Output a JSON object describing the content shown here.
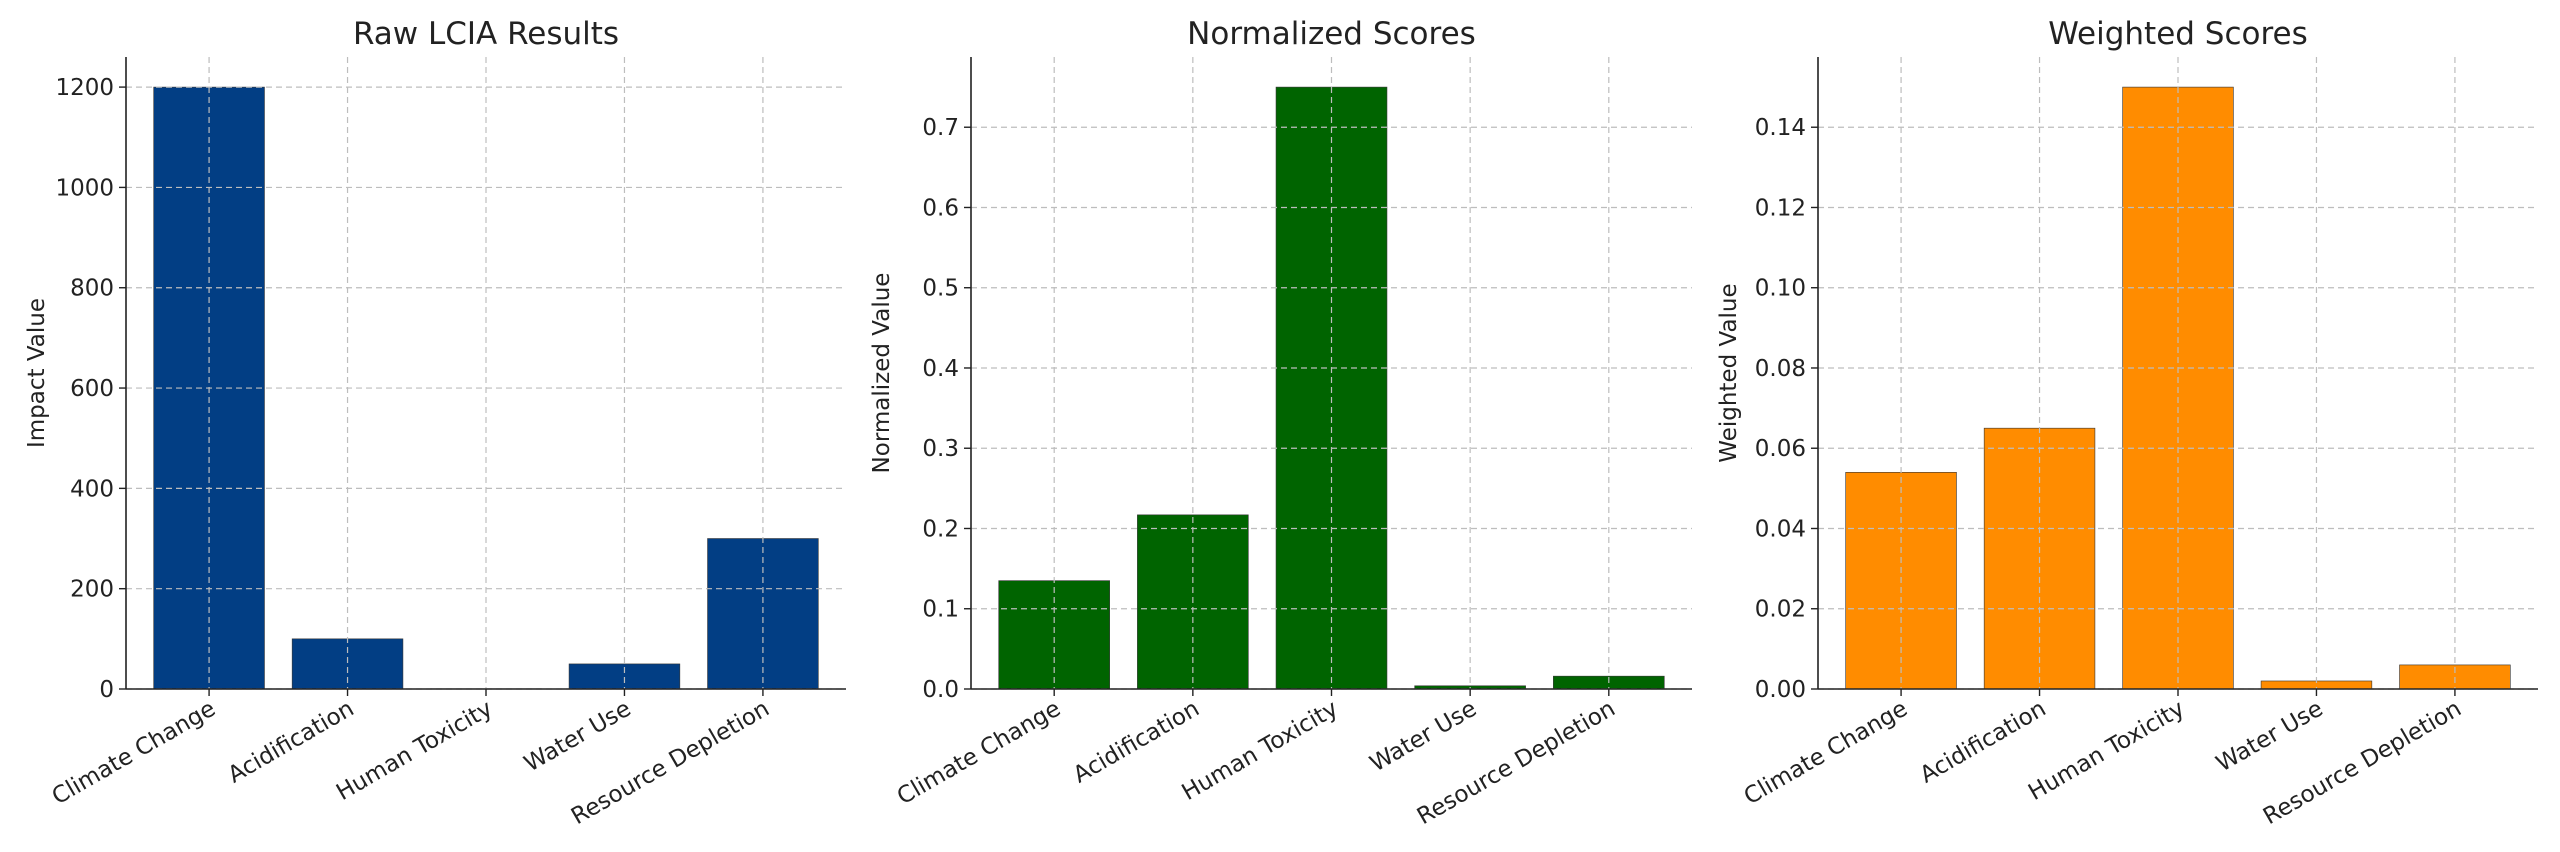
{
  "chart_data": [
    {
      "type": "bar",
      "title": "Raw LCIA Results",
      "xlabel": "",
      "ylabel": "Impact Value",
      "categories": [
        "Climate Change",
        "Acidification",
        "Human Toxicity",
        "Water Use",
        "Resource Depletion"
      ],
      "values": [
        1200,
        100,
        0.5,
        50,
        300
      ],
      "ylim": [
        0,
        1260
      ],
      "yticks": [
        0,
        200,
        400,
        600,
        800,
        1000,
        1200
      ],
      "ytick_labels": [
        "0",
        "200",
        "400",
        "600",
        "800",
        "1000",
        "1200"
      ],
      "color": "#023e84",
      "grid": true
    },
    {
      "type": "bar",
      "title": "Normalized Scores",
      "xlabel": "",
      "ylabel": "Normalized Value",
      "categories": [
        "Climate Change",
        "Acidification",
        "Human Toxicity",
        "Water Use",
        "Resource Depletion"
      ],
      "values": [
        0.135,
        0.217,
        0.75,
        0.004,
        0.016
      ],
      "ylim": [
        0,
        0.7875
      ],
      "yticks": [
        0.0,
        0.1,
        0.2,
        0.3,
        0.4,
        0.5,
        0.6,
        0.7
      ],
      "ytick_labels": [
        "0.0",
        "0.1",
        "0.2",
        "0.3",
        "0.4",
        "0.5",
        "0.6",
        "0.7"
      ],
      "color": "#006400",
      "grid": true
    },
    {
      "type": "bar",
      "title": "Weighted Scores",
      "xlabel": "",
      "ylabel": "Weighted Value",
      "categories": [
        "Climate Change",
        "Acidification",
        "Human Toxicity",
        "Water Use",
        "Resource Depletion"
      ],
      "values": [
        0.054,
        0.065,
        0.15,
        0.002,
        0.006
      ],
      "ylim": [
        0,
        0.1575
      ],
      "yticks": [
        0.0,
        0.02,
        0.04,
        0.06,
        0.08,
        0.1,
        0.12,
        0.14
      ],
      "ytick_labels": [
        "0.00",
        "0.02",
        "0.04",
        "0.06",
        "0.08",
        "0.10",
        "0.12",
        "0.14"
      ],
      "color": "#ff8c00",
      "grid": true
    }
  ]
}
